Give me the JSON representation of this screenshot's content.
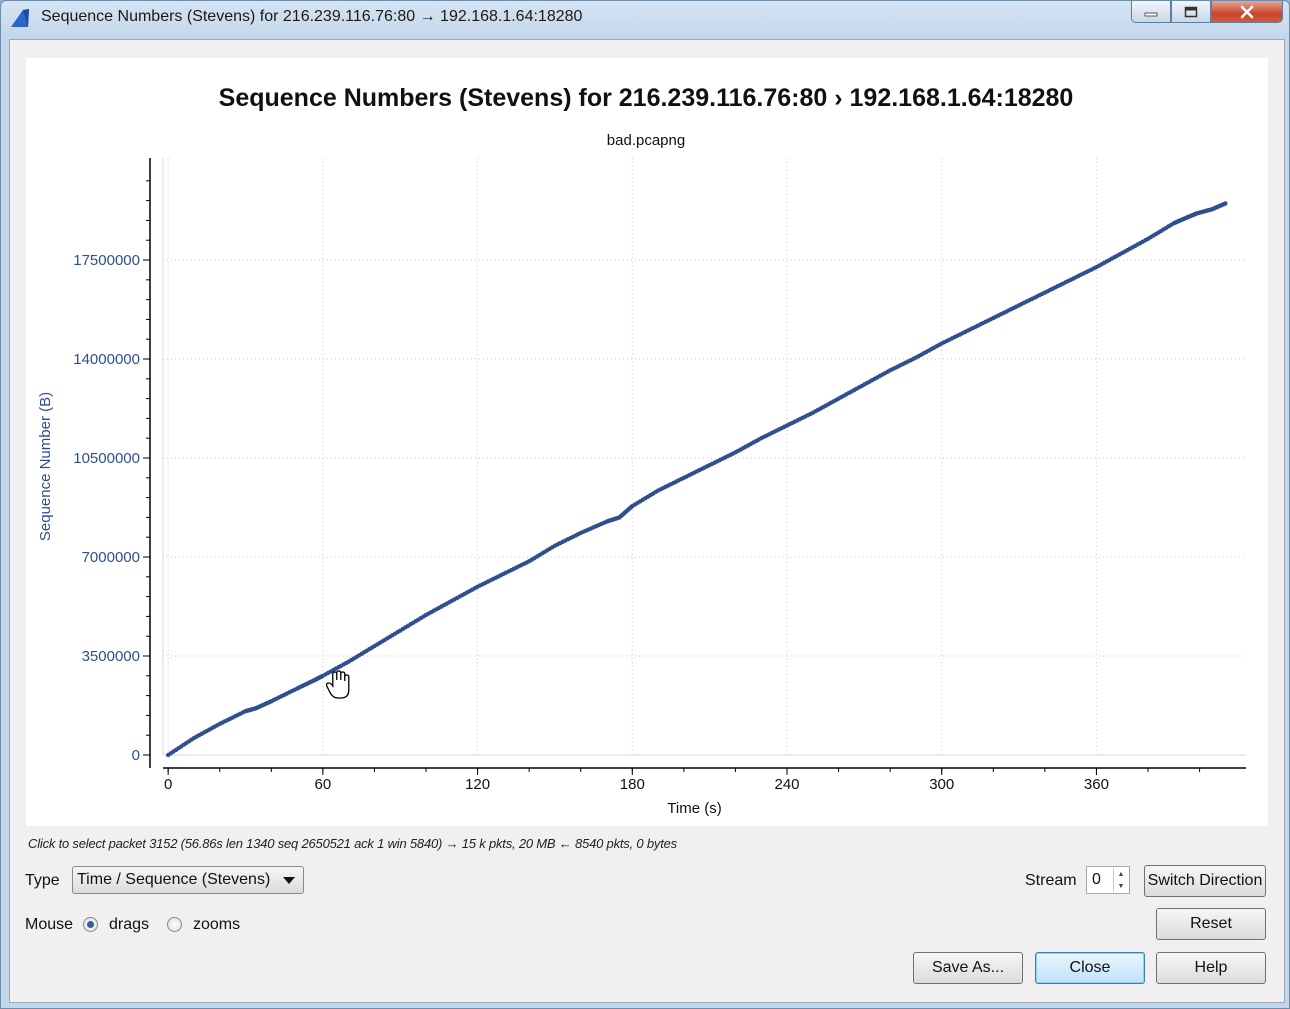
{
  "window": {
    "title": "Sequence Numbers (Stevens) for 216.239.116.76:80 → 192.168.1.64:18280",
    "icon": "wireshark-shark-fin-icon"
  },
  "plot": {
    "title": "Sequence Numbers (Stevens) for 216.239.116.76:80 › 192.168.1.64:18280",
    "subtitle": "bad.pcapng"
  },
  "chart_data": {
    "type": "scatter",
    "title": "Sequence Numbers (Stevens) for 216.239.116.76:80 › 192.168.1.64:18280",
    "subtitle": "bad.pcapng",
    "xlabel": "Time (s)",
    "ylabel": "Sequence Number (B)",
    "xlim": [
      -2,
      418
    ],
    "ylim": [
      0,
      20400000
    ],
    "xticks": [
      0,
      60,
      120,
      180,
      240,
      300,
      360
    ],
    "yticks": [
      0,
      3500000,
      7000000,
      10500000,
      14000000,
      17500000
    ],
    "xtick_labels": [
      "0",
      "60",
      "120",
      "180",
      "240",
      "300",
      "360"
    ],
    "ytick_labels": [
      "0",
      "3500000",
      "7000000",
      "10500000",
      "14000000",
      "17500000"
    ],
    "grid": true,
    "color": "#2f4f8f",
    "series": [
      {
        "x": [
          0,
          10,
          20,
          30,
          34,
          40,
          50,
          56.86,
          60,
          70,
          80,
          90,
          100,
          110,
          120,
          130,
          140,
          150,
          160,
          170,
          175,
          180,
          190,
          200,
          210,
          220,
          230,
          240,
          250,
          260,
          270,
          280,
          290,
          300,
          310,
          320,
          330,
          340,
          350,
          360,
          370,
          380,
          390,
          395,
          399,
          405,
          410
        ],
        "y": [
          0,
          600000,
          1100000,
          1550000,
          1650000,
          1900000,
          2350000,
          2650521,
          2800000,
          3300000,
          3850000,
          4400000,
          4950000,
          5450000,
          5950000,
          6400000,
          6850000,
          7400000,
          7850000,
          8250000,
          8400000,
          8800000,
          9350000,
          9800000,
          10250000,
          10700000,
          11200000,
          11650000,
          12100000,
          12600000,
          13100000,
          13600000,
          14050000,
          14550000,
          15000000,
          15450000,
          15900000,
          16350000,
          16800000,
          17250000,
          17750000,
          18250000,
          18800000,
          19000000,
          19150000,
          19300000,
          19500000
        ]
      }
    ]
  },
  "status_hint": "Click to select packet 3152 (56.86s len 1340 seq 2650521 ack 1 win 5840) → 15 k pkts, 20 MB ← 8540 pkts, 0 bytes",
  "controls": {
    "type_label": "Type",
    "type_value": "Time / Sequence (Stevens)",
    "mouse_label": "Mouse",
    "mouse_drags": "drags",
    "mouse_zooms": "zooms",
    "mouse_selected": "drags",
    "stream_label": "Stream",
    "stream_value": "0",
    "switch_direction": "Switch Direction",
    "reset": "Reset",
    "save_as": "Save As...",
    "close": "Close",
    "help": "Help"
  }
}
